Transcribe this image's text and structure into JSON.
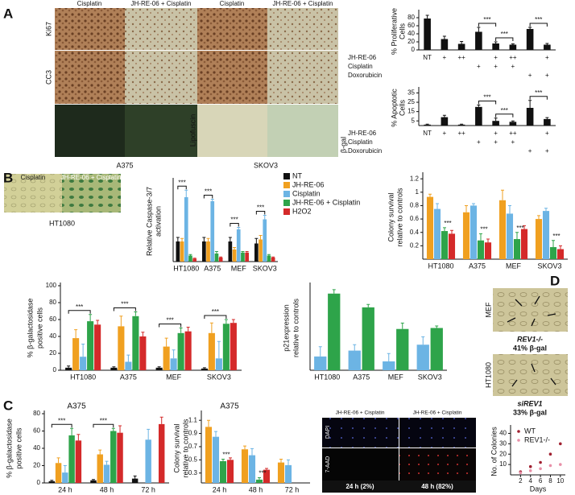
{
  "panel_letters": [
    "A",
    "B",
    "C",
    "D"
  ],
  "panel_a": {
    "columns": [
      "Cisplatin",
      "JH-RE-06 + Cisplatin",
      "Cisplatin",
      "JH-RE-06 + Cisplatin"
    ],
    "rows": [
      "Ki67",
      "CC3"
    ],
    "stains": [
      "Lipofuscin",
      "β-gal"
    ],
    "cell_lines": [
      "A375",
      "SKOV3"
    ]
  },
  "panel_b": {
    "columns": [
      "Cisplatin",
      "JH-RE-06 + Cisplatin"
    ],
    "cell_line": "HT1080"
  },
  "panel_c": {
    "columns": [
      "JH-RE-06 + Cisplatin",
      "JH-RE-06 + Cisplatin"
    ],
    "rows": [
      "DAPI",
      "7-AAD"
    ],
    "times": [
      "24 h (2%)",
      "48 h (82%)"
    ]
  },
  "panel_d": {
    "images": [
      {
        "cell": "MEF",
        "genotype": "REV1-/-",
        "caption": "41% β-gal"
      },
      {
        "cell": "HT1080",
        "genotype": "siREV1",
        "caption": "33% β-gal"
      }
    ]
  },
  "chart_data": [
    {
      "type": "bar",
      "ylabel": [
        "% Proliferative",
        "Cells"
      ],
      "ylim": [
        0,
        92
      ],
      "yticks": [
        0,
        20,
        40,
        60,
        80
      ],
      "series": [
        {
          "color": "#111111",
          "values": [
            78,
            27,
            15,
            45,
            16,
            13,
            52,
            13
          ],
          "errors": [
            8,
            7,
            6,
            11,
            4,
            2,
            4,
            3
          ]
        }
      ],
      "rows": [
        {
          "name": "JH-RE-06",
          "labels": [
            "NT",
            "+",
            "++",
            null,
            "+",
            "++",
            null,
            "+"
          ]
        },
        {
          "name": "Cisplatin",
          "labels": [
            null,
            null,
            null,
            "+",
            "+",
            "+",
            null,
            null
          ]
        },
        {
          "name": "Doxorubicin",
          "labels": [
            null,
            null,
            null,
            null,
            null,
            null,
            "+",
            "+"
          ]
        }
      ],
      "brackets": [
        {
          "from": [
            3,
            0
          ],
          "to": [
            4,
            0
          ],
          "label": "***"
        },
        {
          "from": [
            4,
            0
          ],
          "to": [
            5,
            0
          ],
          "label": "***"
        },
        {
          "from": [
            6,
            0
          ],
          "to": [
            7,
            0
          ],
          "label": "***"
        }
      ]
    },
    {
      "type": "bar",
      "ylabel": [
        "% Apoptotic",
        "Cells"
      ],
      "ylim": [
        0,
        38
      ],
      "yticks": [
        5,
        15,
        25,
        35
      ],
      "series": [
        {
          "color": "#111111",
          "values": [
            1,
            9,
            1,
            20,
            5,
            4,
            19,
            7
          ],
          "errors": [
            0.5,
            2,
            0.5,
            2,
            3,
            1,
            8,
            1.5
          ]
        }
      ],
      "rows": [
        {
          "name": "JH-RE-06",
          "labels": [
            "NT",
            "+",
            "++",
            null,
            "+",
            "++",
            null,
            "+"
          ]
        },
        {
          "name": "Cisplatin",
          "labels": [
            null,
            null,
            null,
            "+",
            "+",
            "+",
            null,
            null
          ]
        },
        {
          "name": "Doxorubicin",
          "labels": [
            null,
            null,
            null,
            null,
            null,
            null,
            "+",
            "+"
          ]
        }
      ],
      "brackets": [
        {
          "from": [
            3,
            0
          ],
          "to": [
            4,
            0
          ],
          "label": "***"
        },
        {
          "from": [
            4,
            0
          ],
          "to": [
            5,
            0
          ],
          "label": "***"
        },
        {
          "from": [
            6,
            0
          ],
          "to": [
            7,
            0
          ],
          "label": "***"
        }
      ]
    },
    {
      "type": "bar",
      "ylabel": [
        "Relative Caspase-3/7",
        "activation"
      ],
      "ylim": [
        0,
        4
      ],
      "categories": [
        "HT1080",
        "A375",
        "MEF",
        "SKOV3"
      ],
      "series": [
        {
          "name": "NT",
          "color": "#111111",
          "values": [
            1,
            1,
            1,
            0.9
          ],
          "errors": [
            0.2,
            0.2,
            0.2,
            0.25
          ]
        },
        {
          "name": "JH-RE-06",
          "color": "#f0a020",
          "values": [
            1,
            1,
            0.6,
            1.1
          ],
          "errors": [
            0.15,
            0.15,
            0.1,
            0.2
          ]
        },
        {
          "name": "Cisplatin",
          "color": "#6cb4e4",
          "values": [
            3.2,
            3,
            1.6,
            2.1
          ],
          "errors": [
            0.35,
            0.1,
            0.1,
            0.2
          ]
        },
        {
          "name": "JH-RE-06 + Cisplatin",
          "color": "#2ea44a",
          "values": [
            0.3,
            0.4,
            0.45,
            0.3
          ],
          "errors": [
            0.05,
            0.1,
            0.05,
            0.05
          ]
        },
        {
          "name": "H2O2",
          "color": "#d42a2a",
          "values": [
            0.15,
            0.2,
            0.45,
            0.2
          ],
          "errors": [
            0.02,
            0.03,
            0.05,
            0.03
          ]
        }
      ],
      "brackets": [
        {
          "from": [
            0,
            0
          ],
          "to": [
            0,
            2
          ],
          "label": "***"
        },
        {
          "from": [
            1,
            0
          ],
          "to": [
            1,
            2
          ],
          "label": "***"
        },
        {
          "from": [
            2,
            0
          ],
          "to": [
            2,
            2
          ],
          "label": "***"
        },
        {
          "from": [
            3,
            0
          ],
          "to": [
            3,
            2
          ],
          "label": "***"
        }
      ]
    },
    {
      "type": "bar",
      "ylabel": [
        "Colony survival",
        "relative to controls"
      ],
      "ylim": [
        0,
        1.25
      ],
      "yticks": [
        0.2,
        0.4,
        0.6,
        0.8,
        1,
        1.2
      ],
      "categories": [
        "HT1080",
        "A375",
        "MEF",
        "SKOV3"
      ],
      "series": [
        {
          "color": "#f0a020",
          "values": [
            0.93,
            0.7,
            0.88,
            0.6
          ],
          "errors": [
            0.04,
            0.1,
            0.15,
            0.05
          ]
        },
        {
          "color": "#6cb4e4",
          "values": [
            0.75,
            0.8,
            0.68,
            0.72
          ],
          "errors": [
            0.08,
            0.03,
            0.12,
            0.04
          ]
        },
        {
          "color": "#2ea44a",
          "values": [
            0.42,
            0.28,
            0.3,
            0.18
          ],
          "errors": [
            0.05,
            0.1,
            0.1,
            0.1
          ]
        },
        {
          "color": "#d42a2a",
          "values": [
            0.38,
            0.25,
            0.45,
            0.15
          ],
          "errors": [
            0.05,
            0.05,
            0.05,
            0.05
          ]
        }
      ],
      "stars": [
        {
          "at": [
            0,
            2
          ],
          "label": "***"
        },
        {
          "at": [
            1,
            2
          ],
          "label": "***"
        },
        {
          "at": [
            2,
            2
          ],
          "label": "***"
        },
        {
          "at": [
            3,
            2
          ],
          "label": "***"
        }
      ]
    },
    {
      "type": "bar",
      "ylabel": [
        "% β-galactosidase",
        "positive cells"
      ],
      "ylim": [
        0,
        100
      ],
      "yticks": [
        0,
        20,
        40,
        60,
        80,
        100
      ],
      "categories": [
        "HT1080",
        "A375",
        "MEF",
        "SKOV3"
      ],
      "series": [
        {
          "color": "#111111",
          "values": [
            3,
            3,
            3,
            2
          ],
          "errors": [
            2,
            1,
            1,
            1
          ]
        },
        {
          "color": "#f0a020",
          "values": [
            38,
            52,
            28,
            44
          ],
          "errors": [
            10,
            12,
            10,
            12
          ]
        },
        {
          "color": "#6cb4e4",
          "values": [
            16,
            10,
            14,
            14
          ],
          "errors": [
            15,
            8,
            10,
            20
          ]
        },
        {
          "color": "#2ea44a",
          "values": [
            58,
            64,
            44,
            55
          ],
          "errors": [
            8,
            5,
            6,
            5
          ]
        },
        {
          "color": "#d42a2a",
          "values": [
            54,
            40,
            46,
            56
          ],
          "errors": [
            5,
            5,
            5,
            4
          ]
        }
      ],
      "brackets": [
        {
          "from": [
            0,
            0
          ],
          "to": [
            0,
            3
          ],
          "label": "***"
        },
        {
          "from": [
            1,
            0
          ],
          "to": [
            1,
            3
          ],
          "label": "***"
        },
        {
          "from": [
            2,
            0
          ],
          "to": [
            2,
            3
          ],
          "label": "***"
        },
        {
          "from": [
            3,
            0
          ],
          "to": [
            3,
            3
          ],
          "label": "***"
        }
      ]
    },
    {
      "type": "bar",
      "ylabel": [
        "p21expression",
        "relative to controls"
      ],
      "ylim": [
        0,
        4.3
      ],
      "categories": [
        "HT1080",
        "A375",
        "MEF",
        "SKOV3"
      ],
      "series": [
        {
          "color": "#6cb4e4",
          "values": [
            0.7,
            1,
            0.45,
            1.3
          ],
          "errors": [
            0.5,
            0.3,
            0.4,
            0.4
          ]
        },
        {
          "color": "#2ea44a",
          "values": [
            3.9,
            3.2,
            2.1,
            2.15
          ],
          "errors": [
            0.2,
            0.15,
            0.3,
            0.1
          ]
        }
      ]
    },
    {
      "type": "bar",
      "title": "A375",
      "ylabel": [
        "% β-galactosidase",
        "positive cells"
      ],
      "ylim": [
        0,
        80
      ],
      "yticks": [
        0,
        20,
        40,
        60,
        80
      ],
      "categories": [
        "24 h",
        "48 h",
        "72 h"
      ],
      "series": [
        {
          "color": "#111111",
          "values": [
            2,
            3,
            5
          ],
          "errors": [
            1,
            1,
            3
          ]
        },
        {
          "color": "#f0a020",
          "values": [
            23,
            33,
            null
          ],
          "errors": [
            6,
            5,
            null
          ]
        },
        {
          "color": "#6cb4e4",
          "values": [
            12,
            21,
            50
          ],
          "errors": [
            8,
            4,
            12
          ]
        },
        {
          "color": "#2ea44a",
          "values": [
            55,
            60,
            null
          ],
          "errors": [
            8,
            3,
            null
          ]
        },
        {
          "color": "#d42a2a",
          "values": [
            49,
            58,
            68
          ],
          "errors": [
            7,
            8,
            8
          ]
        }
      ],
      "brackets": [
        {
          "from": [
            0,
            0
          ],
          "to": [
            0,
            3
          ],
          "label": "***"
        },
        {
          "from": [
            1,
            0
          ],
          "to": [
            1,
            3
          ],
          "label": "***"
        }
      ]
    },
    {
      "type": "bar",
      "title": "A375",
      "ylabel": [
        "Colony survival",
        "relative to controls"
      ],
      "ylim": [
        0.15,
        1.2
      ],
      "yticks": [
        0.3,
        0.5,
        0.7,
        0.9,
        1.1
      ],
      "categories": [
        "24 h",
        "48 h",
        "72 h"
      ],
      "series": [
        {
          "color": "#f0a020",
          "values": [
            1.0,
            0.66,
            0.46
          ],
          "errors": [
            0.1,
            0.05,
            0.05
          ]
        },
        {
          "color": "#6cb4e4",
          "values": [
            0.85,
            0.57,
            0.42
          ],
          "errors": [
            0.08,
            0.1,
            0.08
          ]
        },
        {
          "color": "#2ea44a",
          "values": [
            0.48,
            0.2,
            null
          ],
          "errors": [
            0.03,
            0.03,
            null
          ]
        },
        {
          "color": "#d42a2a",
          "values": [
            0.5,
            0.35,
            null
          ],
          "errors": [
            0.03,
            0.02,
            null
          ]
        }
      ],
      "stars": [
        {
          "at": [
            0,
            2
          ],
          "label": "***"
        },
        {
          "at": [
            1,
            2
          ],
          "label": "***"
        }
      ]
    },
    {
      "type": "scatter",
      "xlabel": "Days",
      "ylabel": [
        "No. of Colonies"
      ],
      "x": [
        2,
        4,
        6,
        8,
        10
      ],
      "xlim": [
        0,
        11
      ],
      "xticks": [
        2,
        4,
        6,
        8,
        10
      ],
      "ylim": [
        0,
        45
      ],
      "yticks": [
        10,
        20,
        30,
        40
      ],
      "series": [
        {
          "name": "WT",
          "color": "#a02030",
          "values": [
            3,
            8,
            12,
            20,
            30
          ]
        },
        {
          "name": "REV1-/-",
          "color": "#e890a8",
          "values": [
            2,
            4,
            6,
            9,
            10
          ]
        }
      ]
    }
  ]
}
